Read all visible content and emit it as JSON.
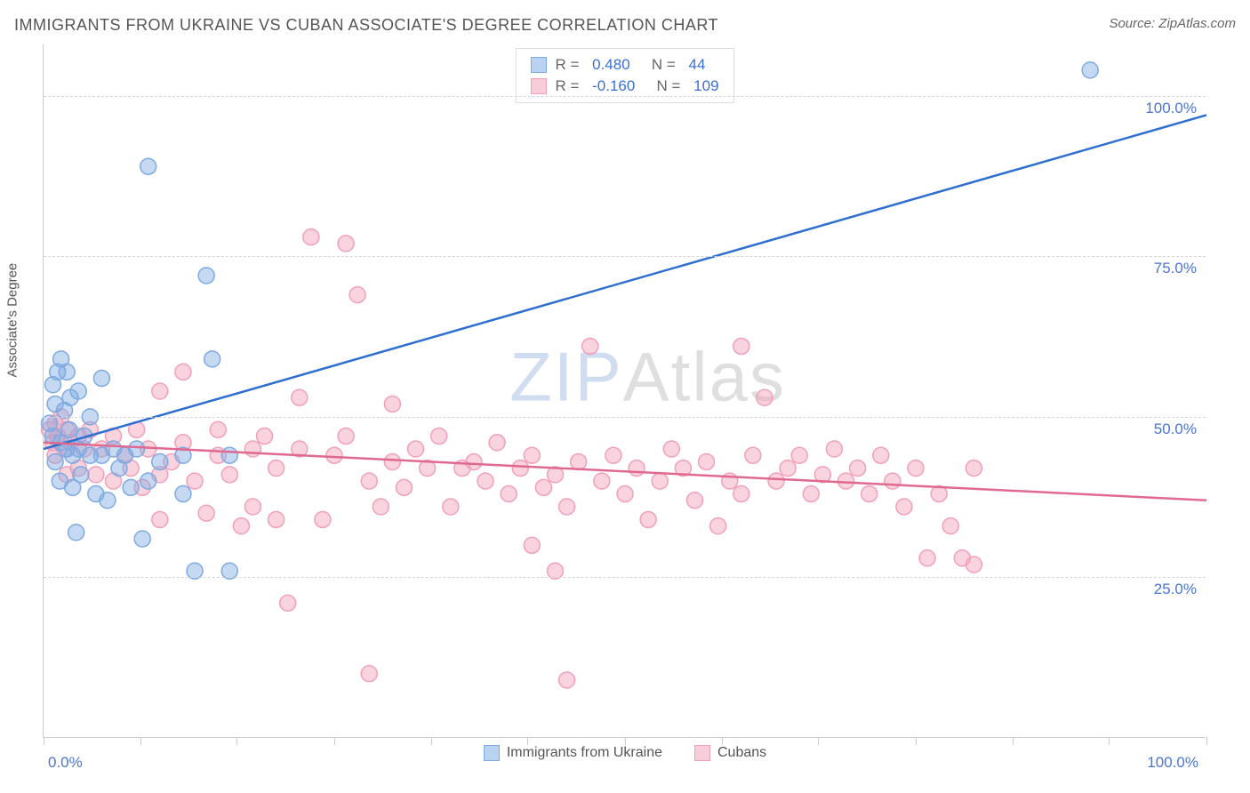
{
  "title": "IMMIGRANTS FROM UKRAINE VS CUBAN ASSOCIATE'S DEGREE CORRELATION CHART",
  "source": "Source: ZipAtlas.com",
  "y_axis_label": "Associate's Degree",
  "watermark_a": "ZIP",
  "watermark_b": "Atlas",
  "chart": {
    "type": "scatter",
    "background_color": "#ffffff",
    "grid_color": "#d5d5d5",
    "axis_color": "#cccccc",
    "xlim": [
      0,
      100
    ],
    "ylim": [
      0,
      108
    ],
    "x_tick_positions": [
      0,
      8.3,
      16.6,
      25,
      33.3,
      41.6,
      50,
      58.3,
      66.6,
      75,
      83.3,
      91.6,
      100
    ],
    "y_tick_positions": [
      25,
      50,
      75,
      100
    ],
    "y_tick_labels": [
      "25.0%",
      "50.0%",
      "75.0%",
      "100.0%"
    ],
    "x_left_label": "0.0%",
    "x_right_label": "100.0%",
    "marker_radius": 9,
    "marker_stroke_width": 1.5,
    "line_width": 2.5,
    "label_fontsize": 17,
    "title_fontsize": 18,
    "series": [
      {
        "name": "Immigrants from Ukraine",
        "fill_color": "rgba(126, 170, 226, 0.45)",
        "stroke_color": "#7eaae2",
        "line_color": "#2f6fd0",
        "swatch_fill": "#b9d2f0",
        "swatch_border": "#7eaae2",
        "R": "0.480",
        "N": "44",
        "trend": {
          "x1": 0,
          "y1": 45,
          "x2": 100,
          "y2": 97
        },
        "points": [
          [
            0.5,
            49
          ],
          [
            0.8,
            47
          ],
          [
            0.8,
            55
          ],
          [
            1,
            43
          ],
          [
            1,
            52
          ],
          [
            1.2,
            57
          ],
          [
            1.4,
            40
          ],
          [
            1.5,
            59
          ],
          [
            1.5,
            46
          ],
          [
            1.8,
            51
          ],
          [
            2,
            45
          ],
          [
            2,
            57
          ],
          [
            2.2,
            48
          ],
          [
            2.3,
            53
          ],
          [
            2.5,
            44
          ],
          [
            2.5,
            39
          ],
          [
            2.8,
            32
          ],
          [
            3,
            45
          ],
          [
            3,
            54
          ],
          [
            3.2,
            41
          ],
          [
            3.5,
            47
          ],
          [
            4,
            44
          ],
          [
            4,
            50
          ],
          [
            4.5,
            38
          ],
          [
            5,
            44
          ],
          [
            5,
            56
          ],
          [
            5.5,
            37
          ],
          [
            6,
            45
          ],
          [
            6.5,
            42
          ],
          [
            7,
            44
          ],
          [
            7.5,
            39
          ],
          [
            8,
            45
          ],
          [
            8.5,
            31
          ],
          [
            9,
            40
          ],
          [
            9,
            89
          ],
          [
            10,
            43
          ],
          [
            12,
            38
          ],
          [
            12,
            44
          ],
          [
            13,
            26
          ],
          [
            14,
            72
          ],
          [
            14.5,
            59
          ],
          [
            16,
            26
          ],
          [
            16,
            44
          ],
          [
            90,
            104
          ]
        ]
      },
      {
        "name": "Cubans",
        "fill_color": "rgba(242, 160, 185, 0.45)",
        "stroke_color": "#f2a0b9",
        "line_color": "#e06a8f",
        "swatch_fill": "#f7cdd9",
        "swatch_border": "#f2a0b9",
        "R": "-0.160",
        "N": "109",
        "trend": {
          "x1": 0,
          "y1": 46,
          "x2": 100,
          "y2": 37
        },
        "points": [
          [
            0.5,
            48
          ],
          [
            0.8,
            46
          ],
          [
            1,
            49
          ],
          [
            1,
            44
          ],
          [
            1.2,
            47
          ],
          [
            1.5,
            50
          ],
          [
            1.8,
            45
          ],
          [
            2,
            48
          ],
          [
            2,
            41
          ],
          [
            2.3,
            46
          ],
          [
            3,
            47
          ],
          [
            3,
            42
          ],
          [
            3.5,
            45
          ],
          [
            4,
            48
          ],
          [
            4.5,
            41
          ],
          [
            5,
            45
          ],
          [
            6,
            47
          ],
          [
            6,
            40
          ],
          [
            7,
            44
          ],
          [
            7.5,
            42
          ],
          [
            8,
            48
          ],
          [
            8.5,
            39
          ],
          [
            9,
            45
          ],
          [
            10,
            41
          ],
          [
            10,
            54
          ],
          [
            10,
            34
          ],
          [
            11,
            43
          ],
          [
            12,
            46
          ],
          [
            12,
            57
          ],
          [
            13,
            40
          ],
          [
            14,
            35
          ],
          [
            15,
            44
          ],
          [
            15,
            48
          ],
          [
            16,
            41
          ],
          [
            17,
            33
          ],
          [
            18,
            45
          ],
          [
            18,
            36
          ],
          [
            19,
            47
          ],
          [
            20,
            42
          ],
          [
            20,
            34
          ],
          [
            21,
            21
          ],
          [
            22,
            53
          ],
          [
            22,
            45
          ],
          [
            23,
            78
          ],
          [
            24,
            34
          ],
          [
            25,
            44
          ],
          [
            26,
            77
          ],
          [
            26,
            47
          ],
          [
            27,
            69
          ],
          [
            28,
            40
          ],
          [
            28,
            10
          ],
          [
            29,
            36
          ],
          [
            30,
            52
          ],
          [
            30,
            43
          ],
          [
            31,
            39
          ],
          [
            32,
            45
          ],
          [
            33,
            42
          ],
          [
            34,
            47
          ],
          [
            35,
            36
          ],
          [
            36,
            42
          ],
          [
            37,
            43
          ],
          [
            38,
            40
          ],
          [
            39,
            46
          ],
          [
            40,
            38
          ],
          [
            41,
            42
          ],
          [
            42,
            30
          ],
          [
            42,
            44
          ],
          [
            43,
            39
          ],
          [
            44,
            26
          ],
          [
            44,
            41
          ],
          [
            45,
            9
          ],
          [
            45,
            36
          ],
          [
            46,
            43
          ],
          [
            47,
            61
          ],
          [
            48,
            40
          ],
          [
            49,
            44
          ],
          [
            50,
            38
          ],
          [
            51,
            42
          ],
          [
            52,
            34
          ],
          [
            53,
            40
          ],
          [
            54,
            45
          ],
          [
            55,
            42
          ],
          [
            56,
            37
          ],
          [
            57,
            43
          ],
          [
            58,
            33
          ],
          [
            59,
            40
          ],
          [
            60,
            38
          ],
          [
            60,
            61
          ],
          [
            61,
            44
          ],
          [
            62,
            53
          ],
          [
            63,
            40
          ],
          [
            64,
            42
          ],
          [
            65,
            44
          ],
          [
            66,
            38
          ],
          [
            67,
            41
          ],
          [
            68,
            45
          ],
          [
            69,
            40
          ],
          [
            70,
            42
          ],
          [
            71,
            38
          ],
          [
            72,
            44
          ],
          [
            73,
            40
          ],
          [
            74,
            36
          ],
          [
            75,
            42
          ],
          [
            76,
            28
          ],
          [
            77,
            38
          ],
          [
            78,
            33
          ],
          [
            79,
            28
          ],
          [
            80,
            27
          ],
          [
            80,
            42
          ]
        ]
      }
    ]
  },
  "legend": {
    "series1_label": "Immigrants from Ukraine",
    "series2_label": "Cubans"
  }
}
